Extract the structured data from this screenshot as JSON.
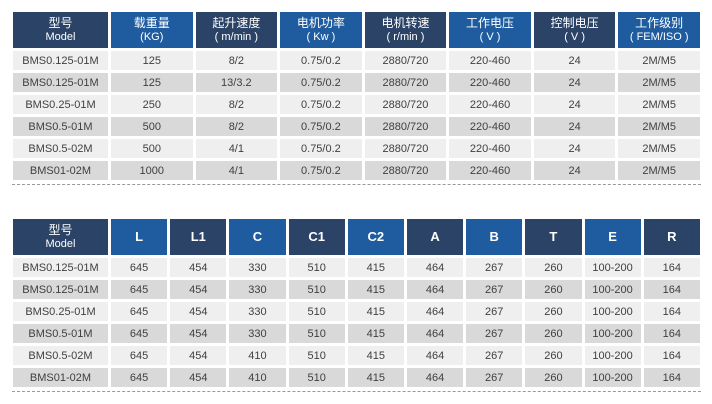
{
  "colors": {
    "header_dark": "#2b4366",
    "header_blue": "#1e5b9f",
    "row_light": "#efefef",
    "row_dark": "#d9d9d9",
    "cell_text": "#3f3f3f",
    "divider_line": "#999999"
  },
  "spec_table": {
    "columns": [
      {
        "id": "model",
        "line1": "型号",
        "line2": "Model"
      },
      {
        "id": "load-capacity",
        "line1": "载重量",
        "line2": "(KG)"
      },
      {
        "id": "lifting-speed",
        "line1": "起升速度",
        "line2": "( m/min )"
      },
      {
        "id": "motor-power",
        "line1": "电机功率",
        "line2": "( Kw )"
      },
      {
        "id": "motor-speed",
        "line1": "电机转速",
        "line2": "( r/min )"
      },
      {
        "id": "working-voltage",
        "line1": "工作电压",
        "line2": "( V )"
      },
      {
        "id": "control-voltage",
        "line1": "控制电压",
        "line2": "( V )"
      },
      {
        "id": "duty-class",
        "line1": "工作级别",
        "line2": "( FEM/ISO )"
      }
    ],
    "rows": [
      [
        "BMS0.125-01M",
        "125",
        "8/2",
        "0.75/0.2",
        "2880/720",
        "220-460",
        "24",
        "2M/M5"
      ],
      [
        "BMS0.125-01M",
        "125",
        "13/3.2",
        "0.75/0.2",
        "2880/720",
        "220-460",
        "24",
        "2M/M5"
      ],
      [
        "BMS0.25-01M",
        "250",
        "8/2",
        "0.75/0.2",
        "2880/720",
        "220-460",
        "24",
        "2M/M5"
      ],
      [
        "BMS0.5-01M",
        "500",
        "8/2",
        "0.75/0.2",
        "2880/720",
        "220-460",
        "24",
        "2M/M5"
      ],
      [
        "BMS0.5-02M",
        "500",
        "4/1",
        "0.75/0.2",
        "2880/720",
        "220-460",
        "24",
        "2M/M5"
      ],
      [
        "BMS01-02M",
        "1000",
        "4/1",
        "0.75/0.2",
        "2880/720",
        "220-460",
        "24",
        "2M/M5"
      ]
    ]
  },
  "dimension_table": {
    "columns": [
      {
        "id": "model",
        "line1": "型号",
        "line2": "Model"
      },
      {
        "id": "dim-L",
        "line1": "L"
      },
      {
        "id": "dim-L1",
        "line1": "L1"
      },
      {
        "id": "dim-C",
        "line1": "C"
      },
      {
        "id": "dim-C1",
        "line1": "C1"
      },
      {
        "id": "dim-C2",
        "line1": "C2"
      },
      {
        "id": "dim-A",
        "line1": "A"
      },
      {
        "id": "dim-B",
        "line1": "B"
      },
      {
        "id": "dim-T",
        "line1": "T"
      },
      {
        "id": "dim-E",
        "line1": "E"
      },
      {
        "id": "dim-R",
        "line1": "R"
      }
    ],
    "rows": [
      [
        "BMS0.125-01M",
        "645",
        "454",
        "330",
        "510",
        "415",
        "464",
        "267",
        "260",
        "100-200",
        "164"
      ],
      [
        "BMS0.125-01M",
        "645",
        "454",
        "330",
        "510",
        "415",
        "464",
        "267",
        "260",
        "100-200",
        "164"
      ],
      [
        "BMS0.25-01M",
        "645",
        "454",
        "330",
        "510",
        "415",
        "464",
        "267",
        "260",
        "100-200",
        "164"
      ],
      [
        "BMS0.5-01M",
        "645",
        "454",
        "330",
        "510",
        "415",
        "464",
        "267",
        "260",
        "100-200",
        "164"
      ],
      [
        "BMS0.5-02M",
        "645",
        "454",
        "410",
        "510",
        "415",
        "464",
        "267",
        "260",
        "100-200",
        "164"
      ],
      [
        "BMS01-02M",
        "645",
        "454",
        "410",
        "510",
        "415",
        "464",
        "267",
        "260",
        "100-200",
        "164"
      ]
    ]
  }
}
